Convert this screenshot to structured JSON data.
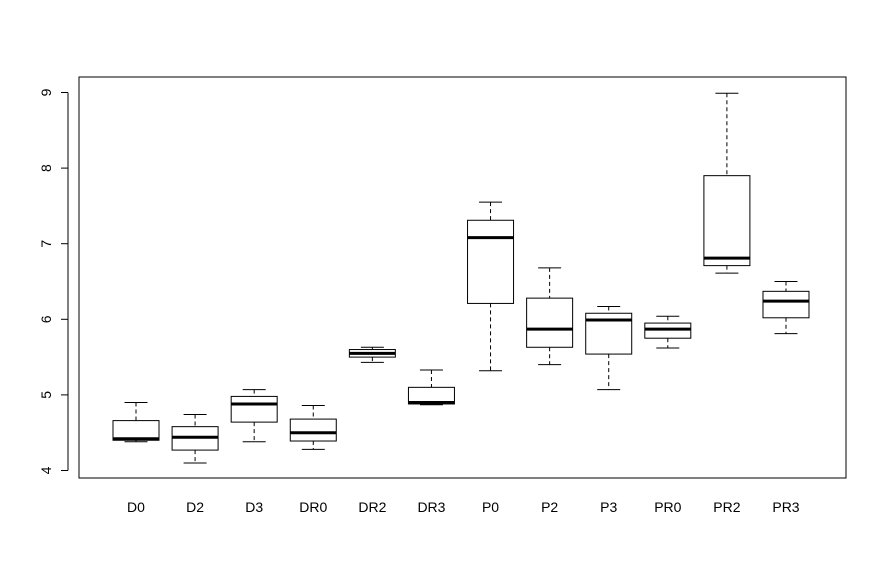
{
  "chart_data": {
    "type": "boxplot",
    "title": "",
    "xlabel": "",
    "ylabel": "",
    "ylim": [
      3.9,
      9.2
    ],
    "yticks": [
      4,
      5,
      6,
      7,
      8,
      9
    ],
    "ytick_labels": [
      "4",
      "5",
      "6",
      "7",
      "8",
      "9"
    ],
    "grid": false,
    "categories": [
      "D0",
      "D2",
      "D3",
      "DR0",
      "DR2",
      "DR3",
      "P0",
      "P2",
      "P3",
      "PR0",
      "PR2",
      "PR3"
    ],
    "boxes": [
      {
        "label": "D0",
        "min": 4.38,
        "q1": 4.4,
        "median": 4.42,
        "q3": 4.66,
        "max": 4.9
      },
      {
        "label": "D2",
        "min": 4.1,
        "q1": 4.27,
        "median": 4.44,
        "q3": 4.58,
        "max": 4.74
      },
      {
        "label": "D3",
        "min": 4.38,
        "q1": 4.64,
        "median": 4.88,
        "q3": 4.98,
        "max": 5.07
      },
      {
        "label": "DR0",
        "min": 4.28,
        "q1": 4.39,
        "median": 4.5,
        "q3": 4.68,
        "max": 4.86
      },
      {
        "label": "DR2",
        "min": 5.43,
        "q1": 5.5,
        "median": 5.55,
        "q3": 5.6,
        "max": 5.63
      },
      {
        "label": "DR3",
        "min": 4.87,
        "q1": 4.88,
        "median": 4.9,
        "q3": 5.1,
        "max": 5.33
      },
      {
        "label": "P0",
        "min": 5.32,
        "q1": 6.21,
        "median": 7.08,
        "q3": 7.31,
        "max": 7.55
      },
      {
        "label": "P2",
        "min": 5.4,
        "q1": 5.63,
        "median": 5.87,
        "q3": 6.28,
        "max": 6.68
      },
      {
        "label": "P3",
        "min": 5.07,
        "q1": 5.54,
        "median": 5.99,
        "q3": 6.08,
        "max": 6.17
      },
      {
        "label": "PR0",
        "min": 5.62,
        "q1": 5.75,
        "median": 5.87,
        "q3": 5.95,
        "max": 6.04
      },
      {
        "label": "PR2",
        "min": 6.61,
        "q1": 6.71,
        "median": 6.81,
        "q3": 7.9,
        "max": 8.99
      },
      {
        "label": "PR3",
        "min": 5.81,
        "q1": 6.02,
        "median": 6.24,
        "q3": 6.37,
        "max": 6.5
      }
    ],
    "colors": {
      "box_fill": "#ffffff",
      "stroke": "#000000",
      "background": "#ffffff"
    }
  }
}
